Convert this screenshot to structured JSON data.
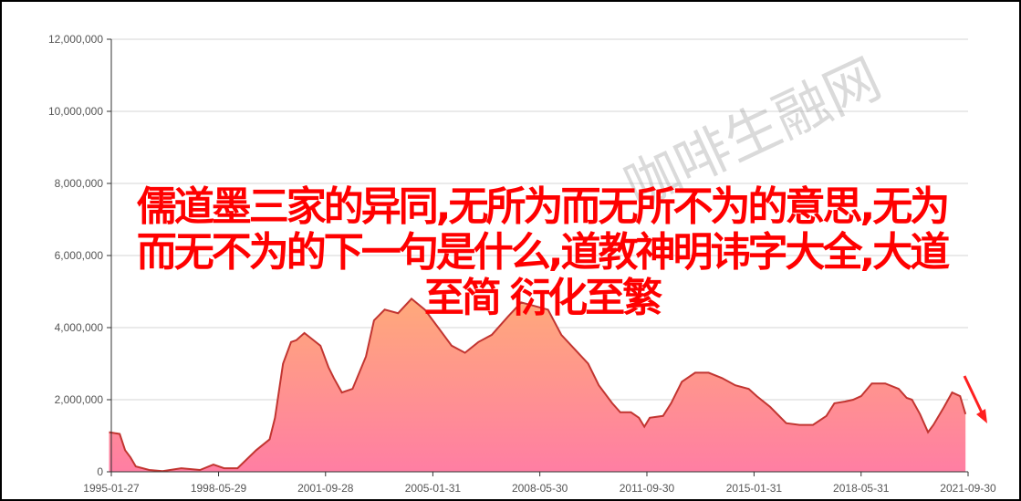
{
  "chart_data": {
    "type": "area",
    "title": "",
    "xlabel": "",
    "ylabel": "",
    "ylim": [
      0,
      12000000
    ],
    "yticks": [
      "0",
      "2,000,000",
      "4,000,000",
      "6,000,000",
      "8,000,000",
      "10,000,000",
      "12,000,000"
    ],
    "ytick_values": [
      0,
      2000000,
      4000000,
      6000000,
      8000000,
      10000000,
      12000000
    ],
    "xticks": [
      "1995-01-27",
      "1998-05-29",
      "2001-09-28",
      "2005-01-31",
      "2008-05-30",
      "2011-09-30",
      "2015-01-31",
      "2018-05-31",
      "2021-09-30"
    ],
    "xlim": [
      "1995-01-27",
      "2021-09-30"
    ],
    "grid": true,
    "colors": {
      "line": "#c23531",
      "fill_top": "#ffa97a",
      "fill_bottom": "#ff7ea3",
      "grid": "#d6d6d6",
      "axis": "#333333"
    },
    "series": [
      {
        "x": [
          "1995-01",
          "1995-05",
          "1995-07",
          "1995-09",
          "1995-11",
          "1996-04",
          "1996-09",
          "1997-04",
          "1997-11",
          "1998-04",
          "1998-08",
          "1999-01",
          "1999-08",
          "2000-01",
          "2000-03",
          "2000-06",
          "2000-09",
          "2000-11",
          "2001-02",
          "2001-08",
          "2001-11",
          "2002-01",
          "2002-04",
          "2002-08",
          "2003-01",
          "2003-04",
          "2003-08",
          "2004-01",
          "2004-06",
          "2004-11",
          "2005-04",
          "2005-09",
          "2006-02",
          "2006-07",
          "2006-12",
          "2007-06",
          "2007-11",
          "2008-04",
          "2008-09",
          "2009-02",
          "2009-07",
          "2009-12",
          "2010-04",
          "2010-09",
          "2010-12",
          "2011-04",
          "2011-07",
          "2011-09",
          "2011-11",
          "2012-04",
          "2012-07",
          "2012-11",
          "2013-04",
          "2013-09",
          "2014-02",
          "2014-07",
          "2014-12",
          "2015-03",
          "2015-08",
          "2016-02",
          "2016-07",
          "2016-12",
          "2017-05",
          "2017-08",
          "2017-12",
          "2018-03",
          "2018-06",
          "2018-10",
          "2019-03",
          "2019-08",
          "2019-11",
          "2020-01",
          "2020-04",
          "2020-07",
          "2020-09",
          "2021-01",
          "2021-04",
          "2021-07",
          "2021-09"
        ],
        "y": [
          1100000,
          1050000,
          600000,
          400000,
          150000,
          50000,
          20000,
          100000,
          50000,
          200000,
          100000,
          100000,
          600000,
          900000,
          1500000,
          3000000,
          3600000,
          3650000,
          3850000,
          3500000,
          2900000,
          2600000,
          2200000,
          2300000,
          3200000,
          4200000,
          4500000,
          4400000,
          4800000,
          4500000,
          4000000,
          3500000,
          3300000,
          3600000,
          3800000,
          4300000,
          4700000,
          4600000,
          4500000,
          3800000,
          3400000,
          3000000,
          2400000,
          1900000,
          1650000,
          1650000,
          1500000,
          1250000,
          1500000,
          1550000,
          1900000,
          2500000,
          2750000,
          2750000,
          2600000,
          2400000,
          2300000,
          2100000,
          1800000,
          1350000,
          1300000,
          1300000,
          1550000,
          1900000,
          1950000,
          2000000,
          2100000,
          2450000,
          2450000,
          2300000,
          2050000,
          2000000,
          1600000,
          1100000,
          1300000,
          1800000,
          2200000,
          2100000,
          1600000
        ]
      }
    ]
  },
  "overlay": {
    "lines": [
      "儒道墨三家的异同,无所为而无所不为的意思,无为",
      "而无不为的下一句是什么,道教神明讳字大全,大道",
      "至简 衍化至繁"
    ]
  },
  "watermark": "咖啡生融网"
}
